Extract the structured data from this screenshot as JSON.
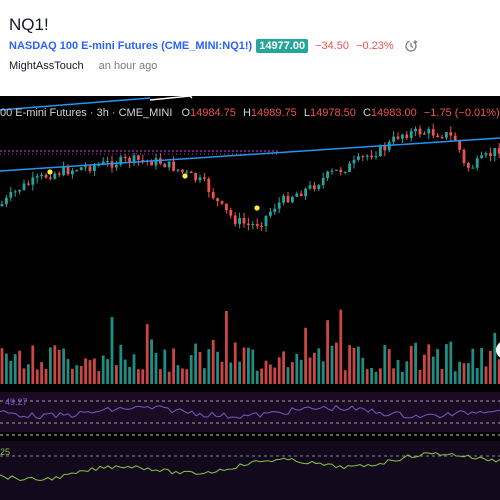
{
  "header": {
    "symbol": "NQ1!",
    "instrument_name": "NASDAQ 100 E-mini Futures",
    "exchange_ticker": "(CME_MINI:NQ1!)",
    "last_price": "14977.00",
    "change": "−34.50",
    "change_pct": "−0.23%",
    "author": "MightAssTouch",
    "published": "an hour ago"
  },
  "legend": {
    "title": "00 E-mini Futures · 3h · CME_MINI",
    "open_label": "O",
    "open": "14984.75",
    "high_label": "H",
    "high": "14989.75",
    "low_label": "L",
    "low": "14978.50",
    "close_label": "C",
    "close": "14983.00",
    "change": "−1.75 (−0.01%)"
  },
  "indicators": {
    "rsi_label": "49.27",
    "second_label": "25"
  },
  "colors": {
    "up": "#26a69a",
    "down": "#ef5350",
    "trendline": "#2196f3",
    "level": "#e040fb",
    "signal_dot": "#ffeb3b",
    "rsi_line": "#7e57c2",
    "second_line": "#8bc34a"
  },
  "icons": [
    "replay-clock-icon"
  ]
}
